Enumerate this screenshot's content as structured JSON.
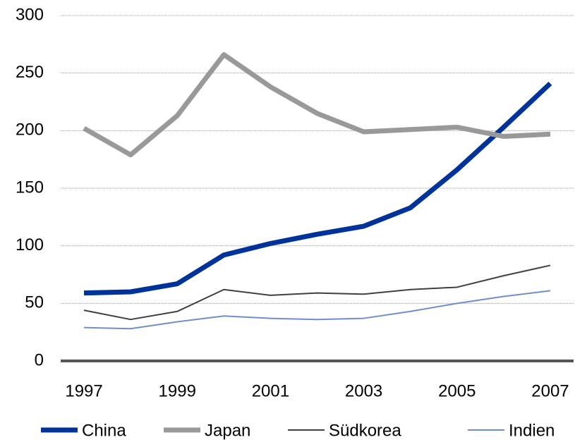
{
  "chart_data": {
    "type": "line",
    "x": [
      1997,
      1998,
      1999,
      2000,
      2001,
      2002,
      2003,
      2004,
      2005,
      2006,
      2007
    ],
    "series": [
      {
        "name": "China",
        "color": "#003399",
        "width": 7,
        "values": [
          59,
          60,
          67,
          92,
          102,
          110,
          117,
          133,
          166,
          203,
          241
        ]
      },
      {
        "name": "Japan",
        "color": "#999999",
        "width": 7,
        "values": [
          202,
          179,
          213,
          266,
          238,
          215,
          199,
          201,
          203,
          195,
          197
        ]
      },
      {
        "name": "Südkorea",
        "color": "#404040",
        "width": 2,
        "values": [
          44,
          36,
          43,
          62,
          57,
          59,
          58,
          62,
          64,
          74,
          83
        ]
      },
      {
        "name": "Indien",
        "color": "#6e8fc9",
        "width": 2,
        "values": [
          29,
          28,
          34,
          39,
          37,
          36,
          37,
          43,
          50,
          56,
          61
        ]
      }
    ],
    "xlim": [
      1996.5,
      2007.5
    ],
    "xticks": [
      1997,
      1999,
      2001,
      2003,
      2005,
      2007
    ],
    "ylim": [
      0,
      300
    ],
    "yticks": [
      0,
      50,
      100,
      150,
      200,
      250,
      300
    ],
    "grid": true,
    "legend": "bottom"
  }
}
